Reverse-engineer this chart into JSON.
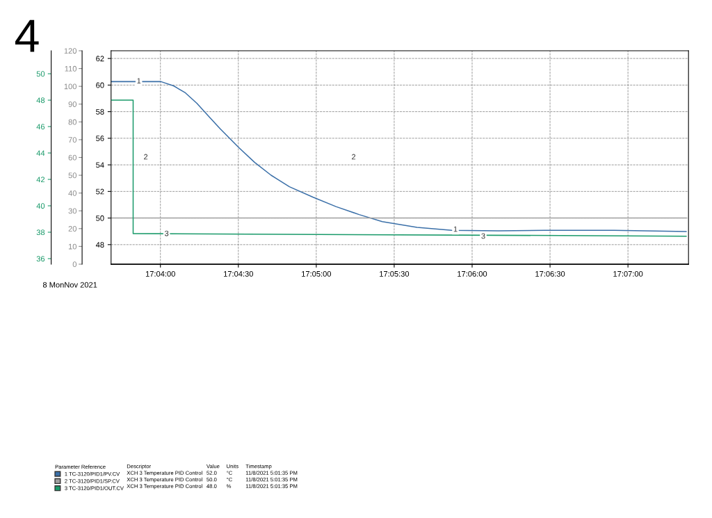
{
  "chart_data": {
    "type": "line",
    "legend": "bottom",
    "legend_title": "Parameter Reference",
    "grid": true,
    "marker": "none",
    "line_style": "solid",
    "xlim": [
      17.06139,
      17.12314
    ],
    "xticks": [
      {
        "value": 17.066667,
        "label": "17:04:00"
      },
      {
        "value": 17.075,
        "label": "17:04:30"
      },
      {
        "value": 17.083333,
        "label": "17:05:00"
      },
      {
        "value": 17.091667,
        "label": "17:05:30"
      },
      {
        "value": 17.1,
        "label": "17:06:00"
      },
      {
        "value": 17.108333,
        "label": "17:06:30"
      },
      {
        "value": 17.116667,
        "label": "17:07:00"
      }
    ],
    "ylim": [
      46.53,
      62.58
    ],
    "yticks": [
      48,
      50,
      52,
      54,
      56,
      58,
      60,
      62
    ],
    "y2lim": [
      0,
      120
    ],
    "y2ticks": [
      0,
      10,
      20,
      30,
      40,
      50,
      60,
      70,
      80,
      90,
      100,
      110,
      120
    ],
    "y3lim": [
      35.58,
      51.74
    ],
    "y3ticks": [
      36,
      38,
      40,
      42,
      44,
      46,
      48,
      50
    ],
    "series": [
      {
        "name": "1 TC-3120/PID1/PV.CV",
        "color": "#3a6fa8",
        "x": [
          17.06139,
          17.06672,
          17.06808,
          17.06933,
          17.07056,
          17.07181,
          17.07306,
          17.07503,
          17.07675,
          17.0785,
          17.08047,
          17.08297,
          17.08544,
          17.08792,
          17.09039,
          17.09411,
          17.09783,
          17.10281,
          17.10775,
          17.11517,
          17.12289
        ],
        "values": [
          60.26,
          60.26,
          59.94,
          59.42,
          58.63,
          57.67,
          56.71,
          55.31,
          54.18,
          53.22,
          52.35,
          51.57,
          50.86,
          50.26,
          49.73,
          49.3,
          49.08,
          49.04,
          49.08,
          49.08,
          48.98
        ]
      },
      {
        "name": "2 TC-3120/PID1/SP.CV",
        "color": "#a0a0a0",
        "x": [
          17.06139,
          17.12289
        ],
        "values": [
          50,
          50
        ]
      },
      {
        "name": "3 TC-3120/PID1/OUT.CV",
        "color": "#1a9a6a",
        "axis": "y3",
        "x": [
          17.06139,
          17.06375,
          17.06375,
          17.12289
        ],
        "values": [
          48.0,
          48.0,
          37.9,
          37.7
        ]
      }
    ],
    "annotations": [
      "4",
      "8 MonNov 2021",
      "Descriptor",
      "Value",
      "Units",
      "Timestamp",
      "XCH 3 Temperature PID Control",
      "52.0",
      "°C",
      "11/8/2021 5:01:35 PM",
      "XCH 3 Temperature PID Control",
      "50.0",
      "°C",
      "11/8/2021 5:01:35 PM",
      "XCH 3 Temperature PID Control",
      "48.0",
      "%",
      "11/8/2021 5:01:35 PM",
      {
        "text": "1",
        "x": 17.06436,
        "y": 60.27
      },
      {
        "text": "1",
        "x": 17.09822,
        "y": 49.12
      },
      "2",
      "2",
      {
        "text": "3",
        "x": 17.06733,
        "y": 48.8
      },
      {
        "text": "3",
        "x": 17.10119,
        "y": 48.6
      }
    ]
  }
}
